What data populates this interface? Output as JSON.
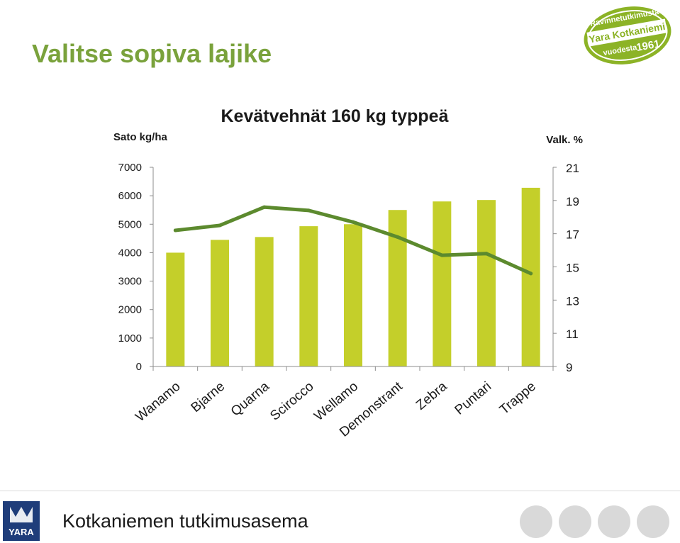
{
  "slide": {
    "title": "Valitse sopiva lajike",
    "footer_text": "Kotkaniemen tutkimusasema"
  },
  "logo": {
    "line1": "Ravinnetutkimusta",
    "line2": "Yara Kotkaniemi",
    "line3": "vuodesta",
    "year": "1961",
    "color": "#8cb326"
  },
  "footer_logo": {
    "text": "YARA",
    "color": "#1f3d7a"
  },
  "nav_circles": 4,
  "colors": {
    "bar": "#c4cf2a",
    "line": "#5c8a2e",
    "title": "#7aa23c"
  },
  "chart_data": {
    "type": "bar",
    "title": "Kevätvehnät 160 kg typpeä",
    "ylabel_left": "Sato kg/ha",
    "ylabel_right": "Valk. %",
    "categories": [
      "Wanamo",
      "Bjarne",
      "Quarna",
      "Scirocco",
      "Wellamo",
      "Demonstrant",
      "Zebra",
      "Puntari",
      "Trappe"
    ],
    "ylim_left": [
      0,
      7000
    ],
    "yticks_left": [
      0,
      1000,
      2000,
      3000,
      4000,
      5000,
      6000,
      7000
    ],
    "ylim_right": [
      9,
      21
    ],
    "yticks_right": [
      9,
      11,
      13,
      15,
      17,
      19,
      21
    ],
    "series": [
      {
        "type": "bar",
        "axis": "left",
        "values": [
          4000,
          4450,
          4550,
          4930,
          5000,
          5500,
          5800,
          5850,
          6280
        ]
      },
      {
        "type": "line",
        "axis": "right",
        "values": [
          17.2,
          17.5,
          18.6,
          18.4,
          17.7,
          16.8,
          15.7,
          15.8,
          14.6
        ]
      }
    ],
    "grid": false,
    "legend": "none"
  }
}
